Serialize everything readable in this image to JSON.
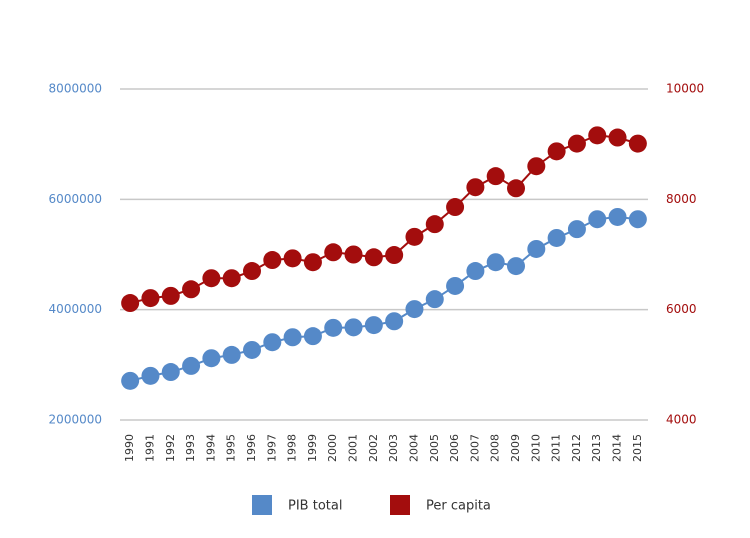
{
  "chart_data": {
    "type": "line",
    "categories": [
      "1990",
      "1991",
      "1992",
      "1993",
      "1994",
      "1995",
      "1996",
      "1997",
      "1998",
      "1999",
      "2000",
      "2001",
      "2002",
      "2003",
      "2004",
      "2005",
      "2006",
      "2007",
      "2008",
      "2009",
      "2010",
      "2011",
      "2012",
      "2013",
      "2014",
      "2015"
    ],
    "series": [
      {
        "name": "PIB total",
        "color": "#5589c8",
        "values": [
          2710000,
          2800000,
          2870000,
          2980000,
          3120000,
          3180000,
          3270000,
          3410000,
          3500000,
          3520000,
          3670000,
          3680000,
          3720000,
          3790000,
          4010000,
          4190000,
          4430000,
          4700000,
          4860000,
          4790000,
          5100000,
          5300000,
          5460000,
          5640000,
          5680000,
          5640000
        ]
      },
      {
        "name": "Per capita",
        "color": "#a30d0d",
        "axis": "y2",
        "values": [
          6120,
          6210,
          6250,
          6370,
          6570,
          6570,
          6700,
          6900,
          6930,
          6860,
          7040,
          7000,
          6950,
          6990,
          7320,
          7550,
          7860,
          8220,
          8420,
          8200,
          8600,
          8870,
          9010,
          9160,
          9120,
          9010
        ]
      }
    ],
    "ylim": [
      2000000,
      8000000
    ],
    "yticks": [
      2000000,
      4000000,
      6000000,
      8000000
    ],
    "y2lim": [
      4000,
      10000
    ],
    "y2ticks": [
      4000,
      6000,
      8000,
      10000
    ],
    "grid": true,
    "legend": "bottom"
  }
}
